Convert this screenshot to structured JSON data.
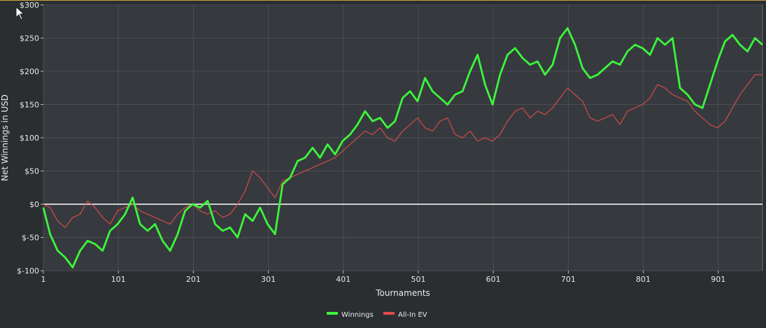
{
  "chart_data": {
    "type": "line",
    "xlabel": "Tournaments",
    "ylabel": "Net Winnings in USD",
    "xlim": [
      1,
      960
    ],
    "ylim": [
      -100,
      300
    ],
    "x_ticks": [
      1,
      101,
      201,
      301,
      401,
      501,
      601,
      701,
      801,
      901
    ],
    "y_ticks": [
      -100,
      -50,
      0,
      50,
      100,
      150,
      200,
      250,
      300
    ],
    "y_tick_labels": [
      "$-100",
      "$-50",
      "$0",
      "$50",
      "$100",
      "$150",
      "$200",
      "$250",
      "$300"
    ],
    "grid": true,
    "legend_position": "bottom-center",
    "series": [
      {
        "name": "Winnings",
        "color": "#3df53d",
        "x": [
          1,
          10,
          20,
          30,
          40,
          50,
          60,
          70,
          80,
          90,
          100,
          110,
          120,
          130,
          140,
          150,
          160,
          170,
          180,
          190,
          200,
          210,
          220,
          230,
          240,
          250,
          260,
          270,
          280,
          290,
          300,
          310,
          320,
          330,
          340,
          350,
          360,
          370,
          380,
          390,
          400,
          410,
          420,
          430,
          440,
          450,
          460,
          470,
          480,
          490,
          500,
          510,
          520,
          530,
          540,
          550,
          560,
          570,
          580,
          590,
          600,
          610,
          620,
          630,
          640,
          650,
          660,
          670,
          680,
          690,
          700,
          710,
          720,
          730,
          740,
          750,
          760,
          770,
          780,
          790,
          800,
          810,
          820,
          830,
          840,
          850,
          860,
          870,
          880,
          890,
          900,
          910,
          920,
          930,
          940,
          950,
          960
        ],
        "values": [
          -5,
          -45,
          -70,
          -80,
          -95,
          -70,
          -55,
          -60,
          -70,
          -40,
          -30,
          -15,
          10,
          -30,
          -40,
          -30,
          -55,
          -70,
          -45,
          -10,
          0,
          -5,
          5,
          -30,
          -40,
          -35,
          -50,
          -15,
          -25,
          -5,
          -30,
          -45,
          30,
          40,
          65,
          70,
          85,
          70,
          90,
          75,
          95,
          105,
          120,
          140,
          125,
          130,
          115,
          125,
          160,
          170,
          155,
          190,
          170,
          160,
          150,
          165,
          170,
          200,
          225,
          180,
          150,
          195,
          225,
          235,
          220,
          210,
          215,
          195,
          210,
          250,
          265,
          240,
          205,
          190,
          195,
          205,
          215,
          210,
          230,
          240,
          235,
          225,
          250,
          240,
          250,
          175,
          165,
          150,
          145,
          180,
          215,
          245,
          255,
          240,
          230,
          250,
          240
        ]
      },
      {
        "name": "All-In EV",
        "color": "#e04b4b",
        "x": [
          1,
          10,
          20,
          30,
          40,
          50,
          60,
          70,
          80,
          90,
          100,
          110,
          120,
          130,
          140,
          150,
          160,
          170,
          180,
          190,
          200,
          210,
          220,
          230,
          240,
          250,
          260,
          270,
          280,
          290,
          300,
          310,
          320,
          330,
          340,
          350,
          360,
          370,
          380,
          390,
          400,
          410,
          420,
          430,
          440,
          450,
          460,
          470,
          480,
          490,
          500,
          510,
          520,
          530,
          540,
          550,
          560,
          570,
          580,
          590,
          600,
          610,
          620,
          630,
          640,
          650,
          660,
          670,
          680,
          690,
          700,
          710,
          720,
          730,
          740,
          750,
          760,
          770,
          780,
          790,
          800,
          810,
          820,
          830,
          840,
          850,
          860,
          870,
          880,
          890,
          900,
          910,
          920,
          930,
          940,
          950,
          960
        ],
        "values": [
          0,
          -5,
          -25,
          -35,
          -20,
          -15,
          5,
          -5,
          -20,
          -30,
          -10,
          -5,
          0,
          -10,
          -15,
          -20,
          -25,
          -30,
          -15,
          -5,
          0,
          -10,
          -15,
          -10,
          -20,
          -15,
          0,
          20,
          50,
          40,
          25,
          10,
          35,
          40,
          45,
          50,
          55,
          60,
          65,
          70,
          80,
          90,
          100,
          110,
          105,
          115,
          100,
          95,
          110,
          120,
          130,
          115,
          110,
          125,
          130,
          105,
          100,
          110,
          95,
          100,
          95,
          105,
          125,
          140,
          145,
          130,
          140,
          135,
          145,
          160,
          175,
          165,
          155,
          130,
          125,
          130,
          135,
          120,
          140,
          145,
          150,
          160,
          180,
          175,
          165,
          160,
          155,
          140,
          130,
          120,
          115,
          125,
          145,
          165,
          180,
          195,
          195
        ]
      }
    ]
  }
}
